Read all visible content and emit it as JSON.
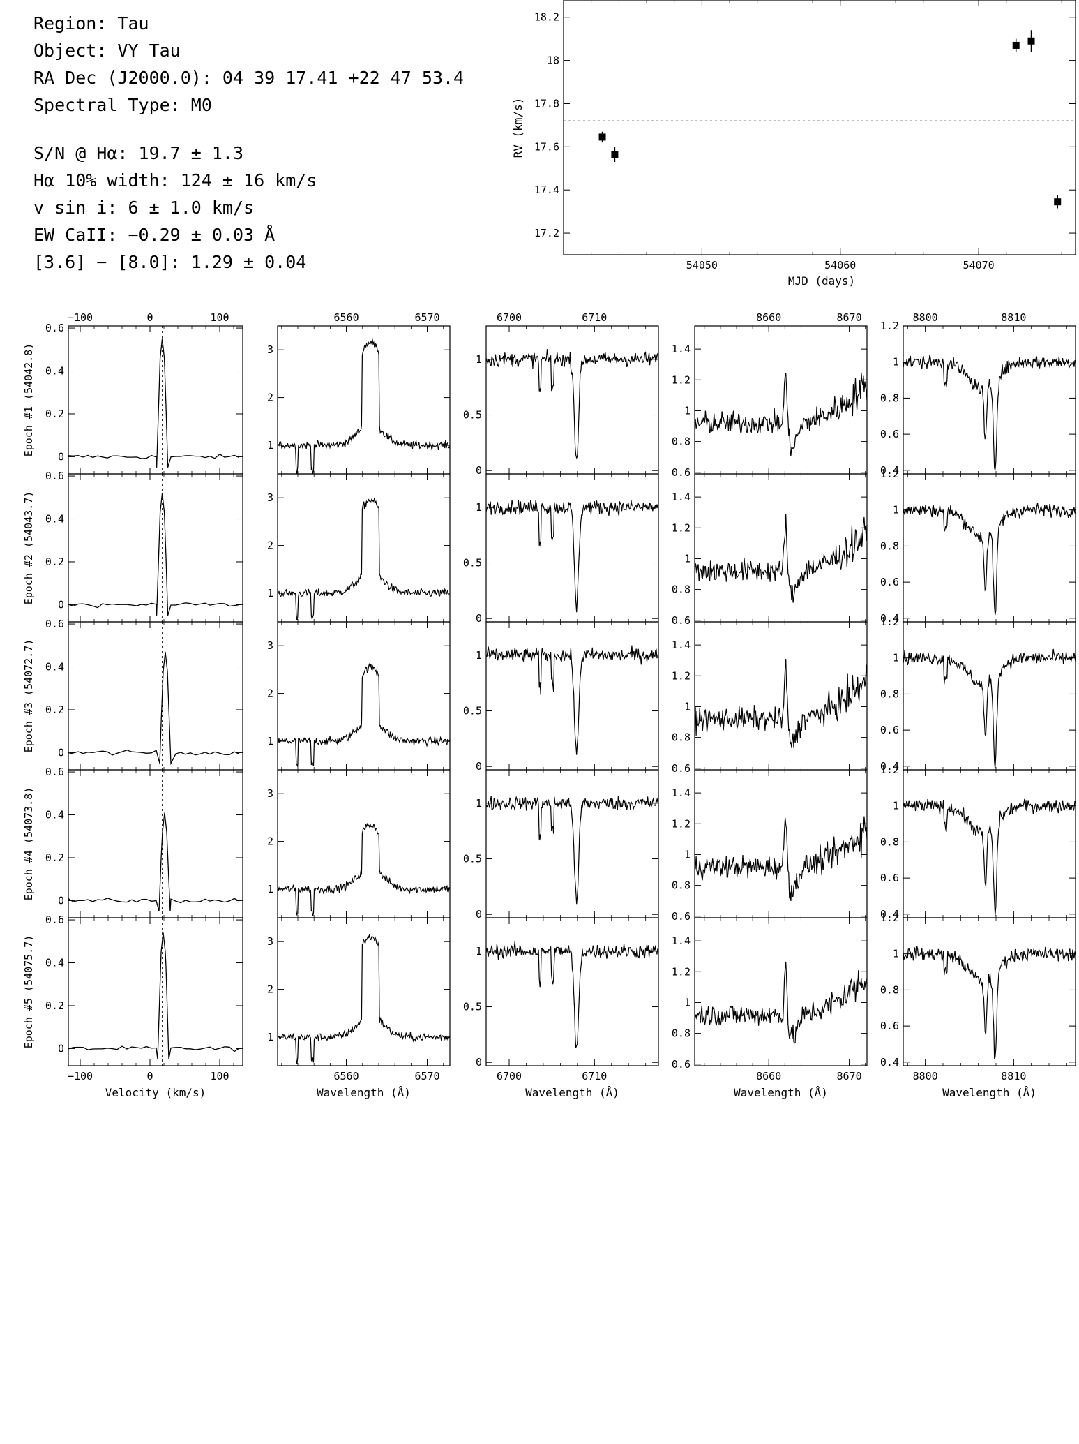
{
  "info": {
    "region": "Region: Tau",
    "object": "Object: VY Tau",
    "radec": "RA Dec (J2000.0): 04 39 17.41 +22 47 53.4",
    "sptype": "Spectral Type: M0",
    "snr": "S/N @ Hα: 19.7 ± 1.3",
    "ha_width": "Hα 10% width: 124 ± 16 km/s",
    "vsini": "v sin i: 6 ± 1.0 km/s",
    "ew_ca": "EW CaII: −0.29 ± 0.03 Å",
    "irac": "[3.6] − [8.0]: 1.29 ± 0.04"
  },
  "chart_data": [
    {
      "type": "scatter",
      "id": "rv",
      "xlabel": "MJD (days)",
      "ylabel": "RV (km/s)",
      "xlim": [
        54040,
        54077
      ],
      "ylim": [
        17.1,
        18.28
      ],
      "xticks": [
        54050,
        54060,
        54070
      ],
      "yticks": [
        17.2,
        17.4,
        17.6,
        17.8,
        18.0,
        18.2
      ],
      "ytick_labels": [
        "17.2",
        "17.4",
        "17.6",
        "17.8",
        "18",
        "18.2"
      ],
      "mean_line": 17.72,
      "points": [
        {
          "x": 54042.8,
          "y": 17.645,
          "err": 0.025
        },
        {
          "x": 54043.7,
          "y": 17.565,
          "err": 0.035
        },
        {
          "x": 54072.7,
          "y": 18.07,
          "err": 0.03
        },
        {
          "x": 54073.8,
          "y": 18.09,
          "err": 0.05
        },
        {
          "x": 54075.7,
          "y": 17.345,
          "err": 0.03
        }
      ]
    },
    {
      "type": "line",
      "id": "ccf",
      "xlabel": "Velocity (km/s)",
      "xlim": [
        -117,
        133
      ],
      "ylim": [
        -0.08,
        0.61
      ],
      "xticks": [
        -100,
        0,
        100
      ],
      "xtick_labels": [
        "−100",
        "0",
        "100"
      ],
      "yticks": [
        0,
        0.2,
        0.4,
        0.6
      ],
      "ytick_labels": [
        "0",
        "0.2",
        "0.4",
        "0.6"
      ],
      "mean_velocity": 17.7,
      "epochs": [
        {
          "label": "Epoch #1 (54042.8)",
          "center": 17.6,
          "peak": 0.55,
          "width": 5
        },
        {
          "label": "Epoch #2 (54043.7)",
          "center": 17.6,
          "peak": 0.52,
          "width": 5
        },
        {
          "label": "Epoch #3 (54072.7)",
          "center": 22,
          "peak": 0.47,
          "width": 6
        },
        {
          "label": "Epoch #4 (54073.8)",
          "center": 21,
          "peak": 0.41,
          "width": 6
        },
        {
          "label": "Epoch #5 (54075.7)",
          "center": 19,
          "peak": 0.54,
          "width": 6
        }
      ]
    },
    {
      "type": "line",
      "id": "halpha",
      "xlabel": "Wavelength (Å)",
      "xlim": [
        6551.5,
        6572.8
      ],
      "ylim": [
        0.4,
        3.5
      ],
      "xticks": [
        6560,
        6570
      ],
      "yticks": [
        1,
        2,
        3
      ],
      "peaks": [
        3.15,
        2.95,
        2.55,
        2.35,
        3.1
      ]
    },
    {
      "type": "line",
      "id": "li",
      "xlabel": "Wavelength (Å)",
      "xlim": [
        6697.3,
        6717.5
      ],
      "ylim": [
        -0.03,
        1.3
      ],
      "xticks": [
        6700,
        6710
      ],
      "yticks": [
        0,
        0.5,
        1
      ],
      "ytick_labels": [
        "0",
        "0.5",
        "1"
      ],
      "line_center": 6707.9
    },
    {
      "type": "line",
      "id": "ca1",
      "xlabel": "Wavelength (Å)",
      "xlim": [
        8650.8,
        8672.2
      ],
      "ylim": [
        0.59,
        1.55
      ],
      "xticks": [
        8660,
        8670
      ],
      "yticks": [
        0.6,
        0.8,
        1.0,
        1.2,
        1.4
      ],
      "ytick_labels": [
        "0.6",
        "0.8",
        "1",
        "1.2",
        "1.4"
      ],
      "emission_center": 8662.1
    },
    {
      "type": "line",
      "id": "ca2",
      "xlabel": "Wavelength (Å)",
      "xlim": [
        8797.5,
        8817
      ],
      "ylim": [
        0.38,
        1.2
      ],
      "xticks": [
        8800,
        8810
      ],
      "yticks": [
        0.4,
        0.6,
        0.8,
        1.0,
        1.2
      ],
      "ytick_labels": [
        "0.4",
        "0.6",
        "0.8",
        "1",
        "1.2"
      ],
      "absorption_centers": [
        8806.8,
        8807.9
      ]
    }
  ]
}
